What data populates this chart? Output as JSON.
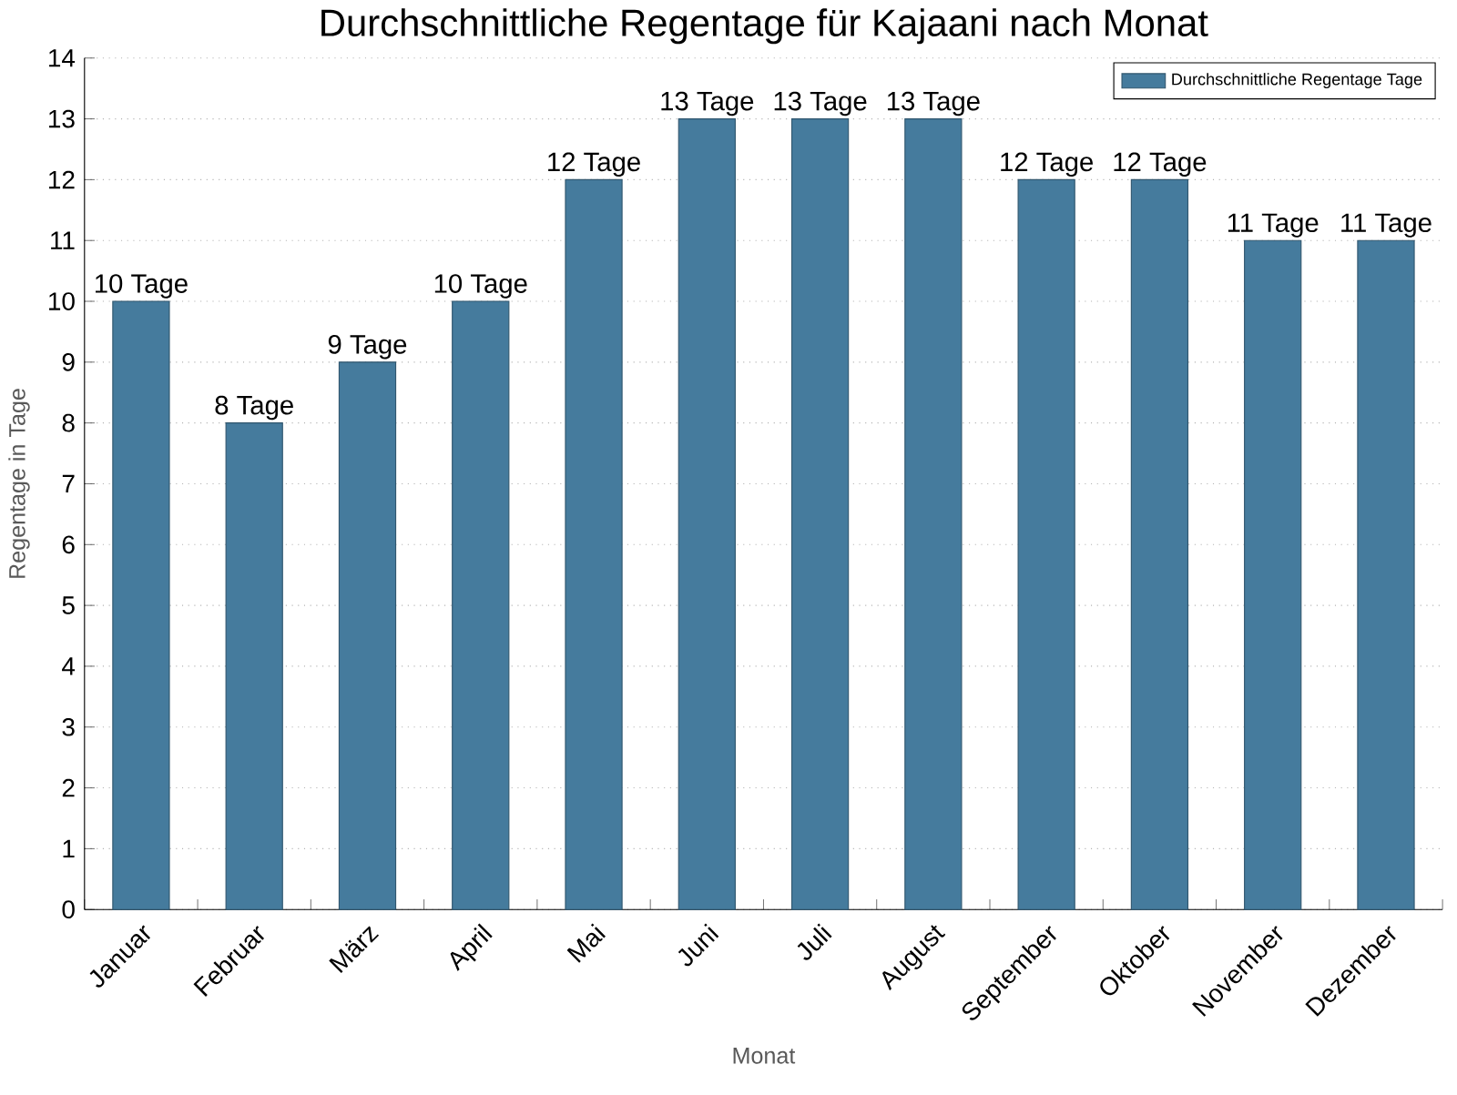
{
  "chart_data": {
    "type": "bar",
    "title": "Durchschnittliche Regentage für Kajaani nach Monat",
    "xlabel": "Monat",
    "ylabel": "Regentage in Tage",
    "categories": [
      "Januar",
      "Februar",
      "März",
      "April",
      "Mai",
      "Juni",
      "Juli",
      "August",
      "September",
      "Oktober",
      "November",
      "Dezember"
    ],
    "series": [
      {
        "name": "Durchschnittliche Regentage Tage",
        "color": "#457b9d",
        "values": [
          10,
          8,
          9,
          10,
          12,
          13,
          13,
          13,
          12,
          12,
          11,
          11
        ],
        "value_labels": [
          "10 Tage",
          "8 Tage",
          "9 Tage",
          "10 Tage",
          "12 Tage",
          "13 Tage",
          "13 Tage",
          "13 Tage",
          "12 Tage",
          "12 Tage",
          "11 Tage",
          "11 Tage"
        ]
      }
    ],
    "ylim": [
      0,
      14
    ],
    "yticks": [
      0,
      1,
      2,
      3,
      4,
      5,
      6,
      7,
      8,
      9,
      10,
      11,
      12,
      13,
      14
    ],
    "grid": "y",
    "legend": "top right"
  }
}
